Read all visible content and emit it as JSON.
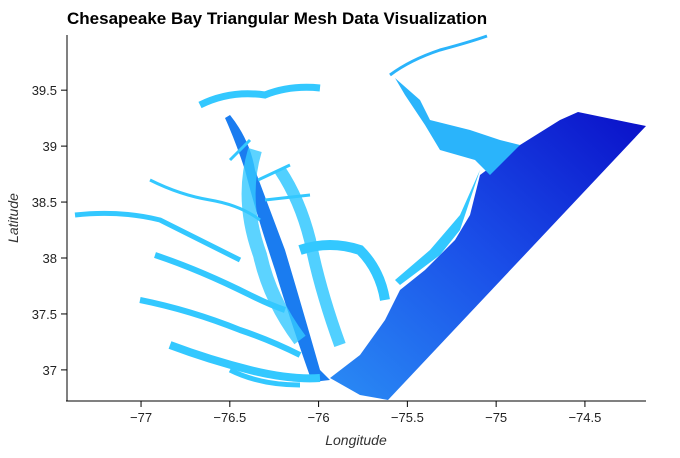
{
  "chart_data": {
    "type": "trimesh",
    "title": "Chesapeake Bay Triangular Mesh Data Visualization",
    "xlabel": "Longitude",
    "ylabel": "Latitude",
    "xlim": [
      -77.417,
      -74.156
    ],
    "ylim": [
      36.722,
      39.993
    ],
    "xticks": [
      {
        "value": -77,
        "label": "−77"
      },
      {
        "value": -76.5,
        "label": "−76.5"
      },
      {
        "value": -76,
        "label": "−76"
      },
      {
        "value": -75.5,
        "label": "−75.5"
      },
      {
        "value": -75,
        "label": "−75"
      },
      {
        "value": -74.5,
        "label": "−74.5"
      }
    ],
    "yticks": [
      37,
      37.5,
      38,
      38.5,
      39,
      39.5
    ]
  }
}
